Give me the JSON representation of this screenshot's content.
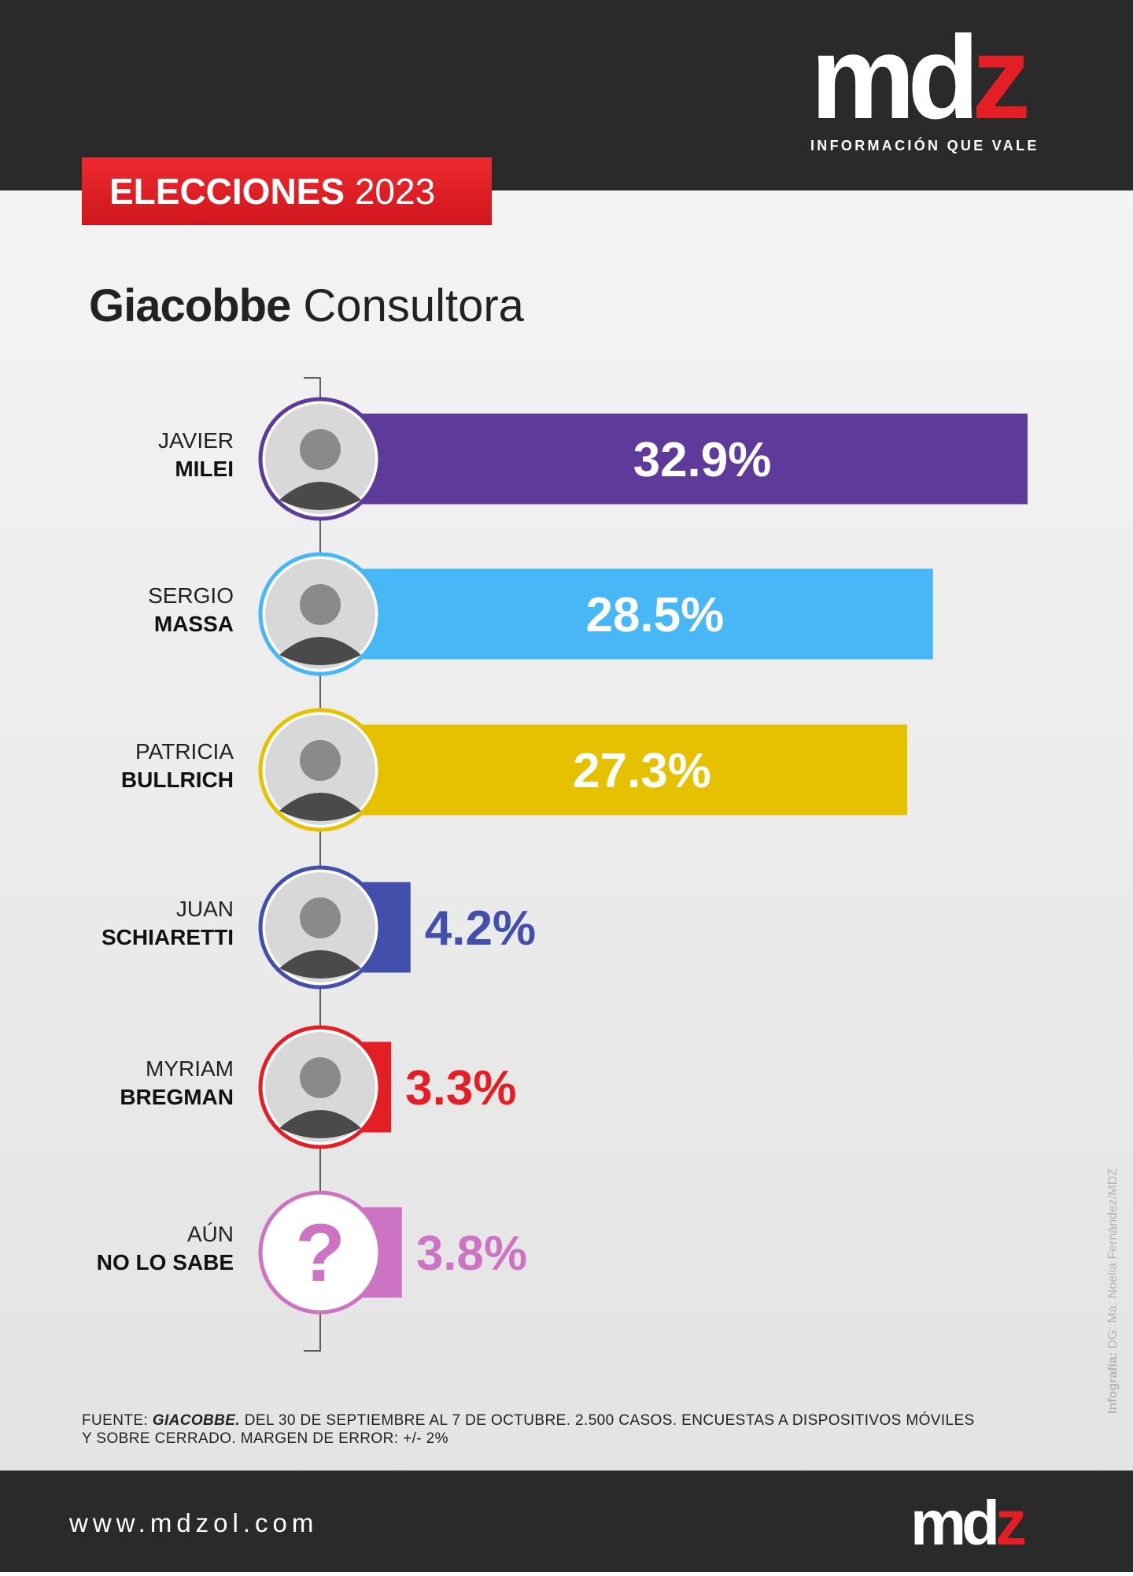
{
  "header": {
    "logo": [
      "md",
      "z"
    ],
    "tagline": "INFORMACIÓN QUE VALE",
    "badge": [
      "ELECCIONES",
      "2023"
    ]
  },
  "chart_data": {
    "type": "bar",
    "orientation": "horizontal",
    "title": [
      "Giacobbe",
      "Consultora"
    ],
    "categories": [
      [
        "JAVIER",
        "MILEI"
      ],
      [
        "SERGIO",
        "MASSA"
      ],
      [
        "PATRICIA",
        "BULLRICH"
      ],
      [
        "JUAN",
        "SCHIARETTI"
      ],
      [
        "MYRIAM",
        "BREGMAN"
      ],
      [
        "AÚN",
        "NO LO SABE"
      ]
    ],
    "values": [
      32.9,
      28.5,
      27.3,
      4.2,
      3.3,
      3.8
    ],
    "value_labels": [
      "32.9%",
      "28.5%",
      "27.3%",
      "4.2%",
      "3.3%",
      "3.8%"
    ],
    "colors": [
      "#5e3a9a",
      "#47b7f5",
      "#e6c100",
      "#4350ab",
      "#e31e24",
      "#cc73c4"
    ],
    "question_mark": "?"
  },
  "source": {
    "label": "FUENTE:",
    "emphasis": "GIACOBBE.",
    "line1": "DEL 30 DE SEPTIEMBRE AL 7 DE OCTUBRE. 2.500 CASOS. ENCUESTAS A DISPOSITIVOS MÓVILES",
    "line2": "Y SOBRE CERRADO. MARGEN DE ERROR: +/- 2%"
  },
  "credit": {
    "label": "Infografía:",
    "text": "DG: Ma. Noelia Fernández/MDZ"
  },
  "footer": {
    "url": "www.mdzol.com",
    "logo": [
      "md",
      "z"
    ]
  }
}
